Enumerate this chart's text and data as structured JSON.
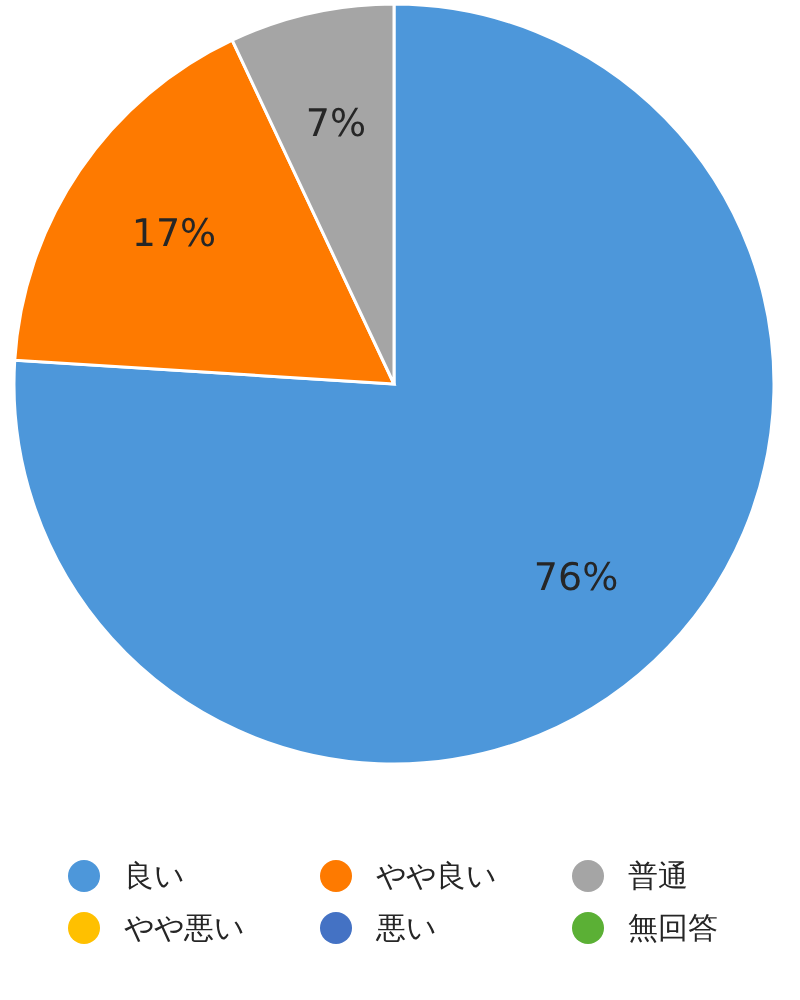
{
  "chart_data": {
    "type": "pie",
    "categories": [
      "良い",
      "やや良い",
      "普通",
      "やや悪い",
      "悪い",
      "無回答"
    ],
    "values": [
      76,
      17,
      7,
      0,
      0,
      0
    ],
    "colors": [
      "#4d97da",
      "#fe7a00",
      "#a5a5a5",
      "#ffc000",
      "#4472c4",
      "#5bb035"
    ],
    "value_labels": [
      "76%",
      "17%",
      "7%",
      null,
      null,
      null
    ],
    "legend": "bottom"
  }
}
